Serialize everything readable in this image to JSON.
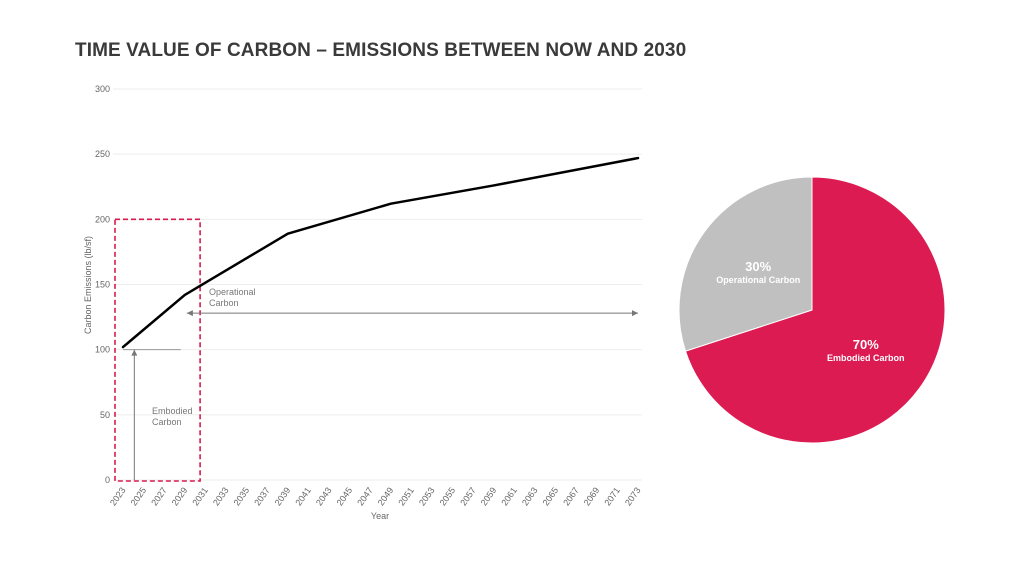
{
  "title": "TIME VALUE OF CARBON – EMISSIONS BETWEEN NOW AND 2030",
  "colors": {
    "line": "#000000",
    "embodied": "#dc1b52",
    "operational": "#c0c0c0",
    "highlight_box": "#d81b4e",
    "annotation": "#777777",
    "grid": "#eeeeee"
  },
  "chart_data": [
    {
      "type": "line",
      "title": "",
      "xlabel": "Year",
      "ylabel": "Carbon Emissions (lb/sf)",
      "ylim": [
        0,
        300
      ],
      "yticks": [
        0,
        50,
        100,
        150,
        200,
        250,
        300
      ],
      "xlim": [
        2023,
        2073
      ],
      "xticks": [
        "2023",
        "2025",
        "2027",
        "2029",
        "2031",
        "2033",
        "2035",
        "2037",
        "2039",
        "2041",
        "2043",
        "2045",
        "2047",
        "2049",
        "2051",
        "2053",
        "2055",
        "2057",
        "2059",
        "2061",
        "2063",
        "2065",
        "2067",
        "2069",
        "2071",
        "2073"
      ],
      "grid": true,
      "series": [
        {
          "x": [
            2023,
            2029,
            2039,
            2049,
            2059,
            2073
          ],
          "y": [
            102,
            142,
            189,
            212,
            226,
            247
          ]
        }
      ],
      "annotations": {
        "operational": [
          "Operational",
          "Carbon"
        ],
        "embodied": [
          "Embodied",
          "Carbon"
        ]
      },
      "highlight_range": [
        2023,
        2030
      ]
    },
    {
      "type": "pie",
      "slices": [
        {
          "label": "Embodied Carbon",
          "value": 70,
          "pct_text": "70%"
        },
        {
          "label": "Operational Carbon",
          "value": 30,
          "pct_text": "30%"
        }
      ]
    }
  ]
}
